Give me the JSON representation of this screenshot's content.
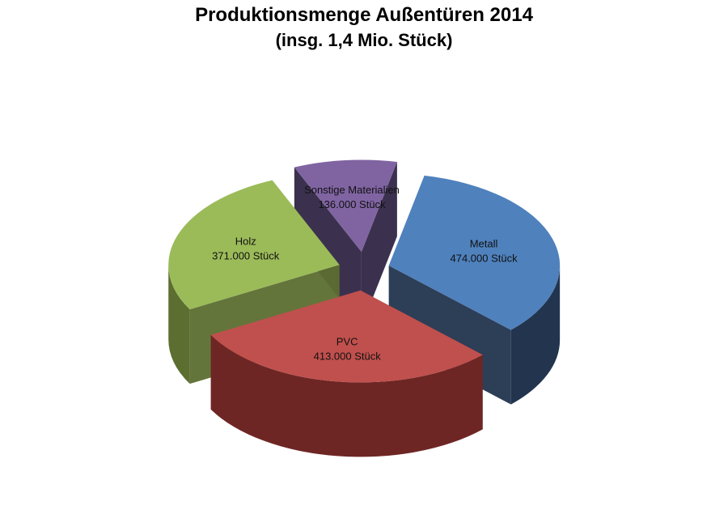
{
  "chart_data": {
    "type": "pie",
    "title": "Produktionsmenge Außentüren 2014",
    "subtitle": "(insg. 1,4 Mio. Stück)",
    "slices": [
      {
        "name": "Metall",
        "value": 474000,
        "value_label": "474.000 Stück",
        "color": "#4F81BD",
        "side_color": "#22344E"
      },
      {
        "name": "PVC",
        "value": 413000,
        "value_label": "413.000 Stück",
        "color": "#C0504D",
        "side_color": "#6E2624"
      },
      {
        "name": "Holz",
        "value": 371000,
        "value_label": "371.000 Stück",
        "color": "#9BBB59",
        "side_color": "#5C6E30"
      },
      {
        "name": "Sonstige Materialien",
        "value": 136000,
        "value_label": "136.000 Stück",
        "color": "#8064A2",
        "side_color": "#302645"
      }
    ],
    "style": "3d-exploded-pie"
  }
}
